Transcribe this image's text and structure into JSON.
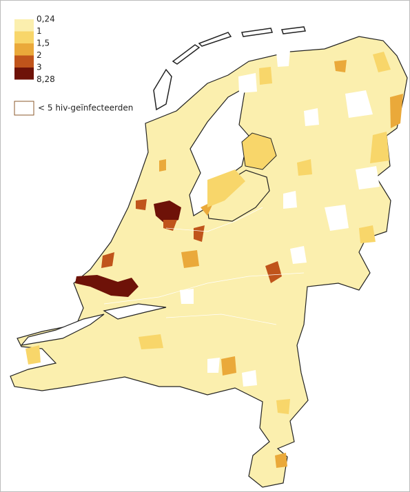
{
  "legend": {
    "breaks": [
      "0,24",
      "1",
      "1,5",
      "2",
      "3",
      "8,28"
    ],
    "colors": [
      "#fbefae",
      "#f8d66a",
      "#eaa93a",
      "#c0541b",
      "#6e1208"
    ],
    "no_data_label": "< 5 hiv-geïnfecteerden",
    "no_data_color": "#ffffff"
  }
}
